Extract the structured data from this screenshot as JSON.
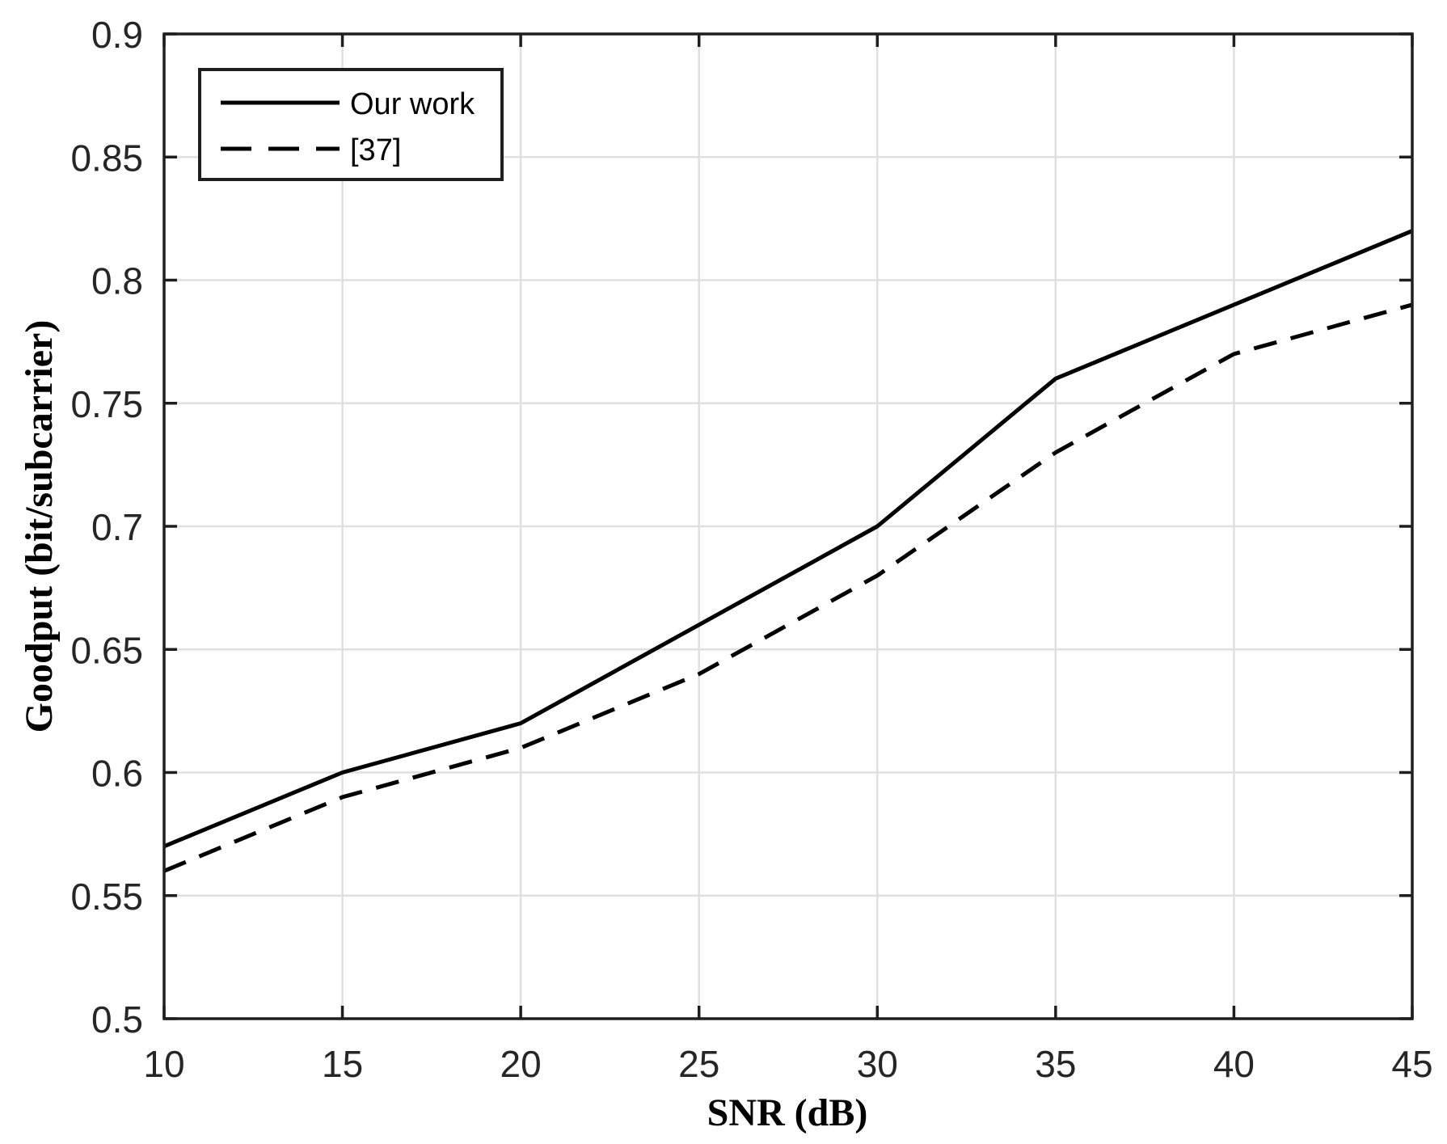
{
  "chart_data": {
    "type": "line",
    "title": "",
    "xlabel": "SNR (dB)",
    "ylabel": "Goodput (bit/subcarrier)",
    "x": [
      10,
      15,
      20,
      25,
      30,
      35,
      40,
      45
    ],
    "series": [
      {
        "name": "Our work",
        "style": "solid",
        "color": "#000000",
        "values": [
          0.57,
          0.6,
          0.62,
          0.66,
          0.7,
          0.76,
          0.79,
          0.82
        ]
      },
      {
        "name": "[37]",
        "style": "dashed",
        "color": "#000000",
        "values": [
          0.56,
          0.59,
          0.61,
          0.64,
          0.68,
          0.73,
          0.77,
          0.79
        ]
      }
    ],
    "xlim": [
      10,
      45
    ],
    "ylim": [
      0.5,
      0.9
    ],
    "xticks": [
      10,
      15,
      20,
      25,
      30,
      35,
      40,
      45
    ],
    "xtick_labels": [
      "10",
      "15",
      "20",
      "25",
      "30",
      "35",
      "40",
      "45"
    ],
    "yticks": [
      0.5,
      0.55,
      0.6,
      0.65,
      0.7,
      0.75,
      0.8,
      0.85,
      0.9
    ],
    "ytick_labels": [
      "0.5",
      "0.55",
      "0.6",
      "0.65",
      "0.7",
      "0.75",
      "0.8",
      "0.85",
      "0.9"
    ],
    "grid": true,
    "legend_position": "top-left",
    "colors": {
      "background": "#ffffff",
      "grid": "#e0e0e0",
      "axis": "#1f1f1f",
      "tick_text": "#262626",
      "line": "#000000"
    }
  },
  "legend": {
    "entries": [
      {
        "label": "Our work",
        "style": "solid"
      },
      {
        "label": "[37]",
        "style": "dashed"
      }
    ]
  }
}
